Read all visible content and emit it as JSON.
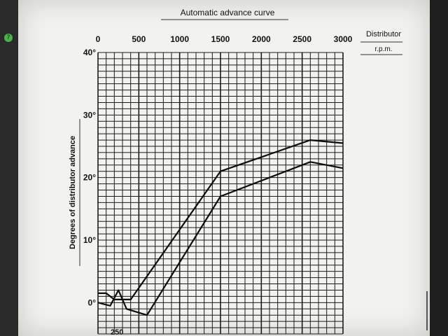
{
  "colors": {
    "paper": "#f2f2ee",
    "ink": "#111111",
    "frame": "#1c1c1c"
  },
  "chart_data": {
    "type": "line",
    "title": "Automatic advance curve",
    "xlabel": "Distributor r.p.m.",
    "xlabel_top": "Distributor",
    "xlabel_bottom": "r.p.m.",
    "ylabel": "Degrees of distributor advance",
    "xlim": [
      0,
      3000
    ],
    "ylim": [
      -5,
      40
    ],
    "x_ticks": [
      0,
      500,
      1000,
      1500,
      2000,
      2500,
      3000
    ],
    "x_tick_labels": [
      "0",
      "500",
      "1000",
      "1500",
      "2000",
      "2500",
      "3000"
    ],
    "y_ticks": [
      0,
      10,
      20,
      30,
      40
    ],
    "y_tick_labels": [
      "0°",
      "10°",
      "20°",
      "30°",
      "40°"
    ],
    "extra_x_ticks": [
      250
    ],
    "extra_x_tick_labels": [
      "250"
    ],
    "grid": true,
    "series": [
      {
        "x": [
          0,
          100,
          200,
          300,
          400,
          1500,
          2600,
          3000
        ],
        "y": [
          1.5,
          1.5,
          0.5,
          0.5,
          0.5,
          21,
          26,
          25.5
        ]
      },
      {
        "x": [
          0,
          150,
          250,
          350,
          600,
          1500,
          2600,
          3000
        ],
        "y": [
          0,
          -0.5,
          2,
          -1,
          -2,
          17,
          22.5,
          21.5
        ]
      }
    ]
  }
}
